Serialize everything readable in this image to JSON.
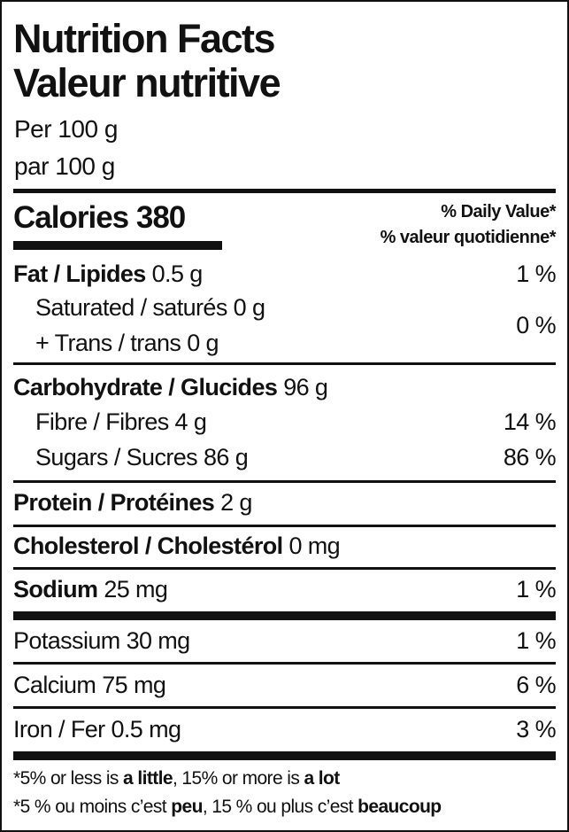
{
  "title_en": "Nutrition Facts",
  "title_fr": "Valeur nutritive",
  "serving_en": "Per 100 g",
  "serving_fr": "par 100 g",
  "calories": {
    "label": "Calories",
    "value": "380"
  },
  "dv_header_en": "% Daily Value*",
  "dv_header_fr": "% valeur quotidienne*",
  "nutrients": {
    "fat": {
      "label": "Fat / Lipides",
      "amount": "0.5 g",
      "dv": "1 %"
    },
    "saturated": {
      "label": "Saturated / saturés",
      "amount": "0 g"
    },
    "trans": {
      "label": "+ Trans / trans",
      "amount": "0 g"
    },
    "sat_trans_dv": "0 %",
    "carbohydrate": {
      "label": "Carbohydrate / Glucides",
      "amount": "96 g"
    },
    "fibre": {
      "label": "Fibre / Fibres",
      "amount": "4 g",
      "dv": "14 %"
    },
    "sugars": {
      "label": "Sugars / Sucres",
      "amount": "86 g",
      "dv": "86 %"
    },
    "protein": {
      "label": "Protein / Protéines",
      "amount": "2 g"
    },
    "cholesterol": {
      "label": "Cholesterol / Cholestérol",
      "amount": "0 mg"
    },
    "sodium": {
      "label": "Sodium",
      "amount": "25 mg",
      "dv": "1 %"
    },
    "potassium": {
      "label": "Potassium",
      "amount": "30 mg",
      "dv": "1 %"
    },
    "calcium": {
      "label": "Calcium",
      "amount": "75 mg",
      "dv": "6 %"
    },
    "iron": {
      "label": "Iron / Fer",
      "amount": "0.5 mg",
      "dv": "3 %"
    }
  },
  "footnote_en": {
    "a": "*5% or less is ",
    "b": "a little",
    "c": ", 15% or more is ",
    "d": "a lot"
  },
  "footnote_fr": {
    "a": "*5 % ou moins c’est ",
    "b": "peu",
    "c": ", 15 % ou plus c’est ",
    "d": "beaucoup"
  }
}
